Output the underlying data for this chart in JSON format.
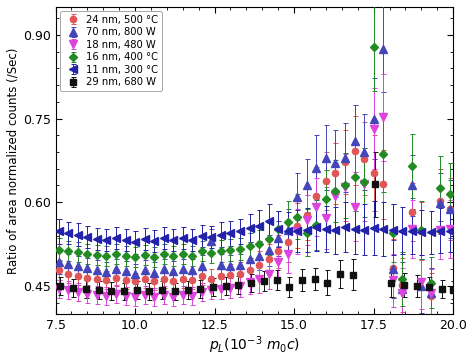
{
  "title": "",
  "xlabel": "$p_{L}(10^{-3}\\ m_0c)$",
  "ylabel": "Ratio of area normalized counts (/Sec)",
  "xlim": [
    7.5,
    20.0
  ],
  "ylim": [
    0.4,
    0.95
  ],
  "yticks": [
    0.45,
    0.6,
    0.75,
    0.9
  ],
  "xticks": [
    7.5,
    10.0,
    12.5,
    15.0,
    17.5,
    20.0
  ],
  "series": [
    {
      "label": "24 nm, 500 °C",
      "color": "#E05555",
      "marker": "o",
      "markersize": 4.5,
      "x": [
        7.6,
        7.9,
        8.2,
        8.5,
        8.8,
        9.1,
        9.4,
        9.7,
        10.0,
        10.3,
        10.6,
        10.9,
        11.2,
        11.5,
        11.8,
        12.1,
        12.4,
        12.7,
        13.0,
        13.3,
        13.6,
        13.9,
        14.2,
        14.5,
        14.8,
        15.1,
        15.4,
        15.7,
        16.0,
        16.3,
        16.6,
        16.9,
        17.2,
        17.5,
        17.8,
        18.1,
        18.4,
        18.7,
        19.0,
        19.3,
        19.6,
        19.9
      ],
      "y": [
        0.478,
        0.472,
        0.468,
        0.465,
        0.462,
        0.46,
        0.465,
        0.46,
        0.458,
        0.462,
        0.458,
        0.462,
        0.458,
        0.463,
        0.46,
        0.468,
        0.462,
        0.468,
        0.47,
        0.472,
        0.478,
        0.488,
        0.498,
        0.512,
        0.528,
        0.558,
        0.578,
        0.612,
        0.638,
        0.652,
        0.672,
        0.692,
        0.678,
        0.652,
        0.632,
        0.482,
        0.452,
        0.582,
        0.548,
        0.432,
        0.602,
        0.588
      ],
      "yerr": [
        0.018,
        0.016,
        0.016,
        0.016,
        0.016,
        0.016,
        0.016,
        0.016,
        0.016,
        0.016,
        0.016,
        0.016,
        0.016,
        0.016,
        0.016,
        0.016,
        0.018,
        0.018,
        0.02,
        0.02,
        0.022,
        0.025,
        0.028,
        0.03,
        0.035,
        0.04,
        0.045,
        0.052,
        0.052,
        0.055,
        0.058,
        0.062,
        0.065,
        0.068,
        0.062,
        0.052,
        0.048,
        0.052,
        0.052,
        0.042,
        0.058,
        0.055
      ]
    },
    {
      "label": "70 nm, 800 W",
      "color": "#4444BB",
      "marker": "^",
      "markersize": 5.5,
      "x": [
        7.6,
        7.9,
        8.2,
        8.5,
        8.8,
        9.1,
        9.4,
        9.7,
        10.0,
        10.3,
        10.6,
        10.9,
        11.2,
        11.5,
        11.8,
        12.1,
        12.4,
        12.7,
        13.0,
        13.3,
        13.6,
        13.9,
        14.2,
        14.5,
        14.8,
        15.1,
        15.4,
        15.7,
        16.0,
        16.3,
        16.6,
        16.9,
        17.2,
        17.5,
        17.8,
        18.1,
        18.4,
        18.7,
        19.0,
        19.3,
        19.6,
        19.9
      ],
      "y": [
        0.492,
        0.49,
        0.486,
        0.482,
        0.478,
        0.475,
        0.48,
        0.476,
        0.472,
        0.478,
        0.474,
        0.48,
        0.476,
        0.48,
        0.478,
        0.486,
        0.53,
        0.488,
        0.486,
        0.488,
        0.498,
        0.504,
        0.514,
        0.535,
        0.55,
        0.61,
        0.63,
        0.662,
        0.68,
        0.67,
        0.68,
        0.71,
        0.69,
        0.75,
        0.875,
        0.48,
        0.445,
        0.63,
        0.45,
        0.438,
        0.598,
        0.588
      ],
      "yerr": [
        0.02,
        0.018,
        0.018,
        0.018,
        0.018,
        0.018,
        0.018,
        0.018,
        0.018,
        0.018,
        0.018,
        0.018,
        0.018,
        0.018,
        0.02,
        0.02,
        0.022,
        0.02,
        0.02,
        0.02,
        0.022,
        0.025,
        0.028,
        0.032,
        0.038,
        0.042,
        0.048,
        0.058,
        0.058,
        0.06,
        0.062,
        0.065,
        0.068,
        0.072,
        0.078,
        0.052,
        0.048,
        0.055,
        0.048,
        0.045,
        0.055,
        0.052
      ]
    },
    {
      "label": "18 nm, 480 W",
      "color": "#DD44DD",
      "marker": "v",
      "markersize": 5.5,
      "x": [
        7.6,
        7.9,
        8.2,
        8.5,
        8.8,
        9.1,
        9.4,
        9.7,
        10.0,
        10.3,
        10.6,
        10.9,
        11.2,
        11.5,
        11.8,
        12.1,
        12.4,
        12.7,
        13.0,
        13.3,
        13.6,
        13.9,
        14.2,
        14.5,
        14.8,
        15.1,
        15.4,
        15.7,
        16.0,
        16.3,
        16.6,
        16.9,
        17.2,
        17.5,
        17.8,
        18.1,
        18.4,
        18.7,
        19.0,
        19.3,
        19.6,
        19.9
      ],
      "y": [
        0.445,
        0.442,
        0.439,
        0.436,
        0.433,
        0.432,
        0.435,
        0.432,
        0.43,
        0.434,
        0.43,
        0.434,
        0.43,
        0.434,
        0.432,
        0.439,
        0.442,
        0.445,
        0.447,
        0.45,
        0.457,
        0.462,
        0.472,
        0.492,
        0.508,
        0.548,
        0.568,
        0.592,
        0.572,
        0.612,
        0.627,
        0.592,
        0.632,
        0.732,
        0.752,
        0.46,
        0.438,
        0.552,
        0.457,
        0.438,
        0.55,
        0.552
      ],
      "yerr": [
        0.016,
        0.016,
        0.016,
        0.016,
        0.016,
        0.016,
        0.016,
        0.016,
        0.016,
        0.016,
        0.016,
        0.016,
        0.016,
        0.016,
        0.016,
        0.016,
        0.016,
        0.018,
        0.018,
        0.02,
        0.022,
        0.025,
        0.028,
        0.03,
        0.035,
        0.04,
        0.045,
        0.052,
        0.055,
        0.058,
        0.06,
        0.062,
        0.065,
        0.072,
        0.078,
        0.048,
        0.045,
        0.052,
        0.048,
        0.042,
        0.052,
        0.052
      ]
    },
    {
      "label": "16 nm, 400 °C",
      "color": "#228B22",
      "marker": "D",
      "markersize": 4.5,
      "x": [
        7.6,
        7.9,
        8.2,
        8.5,
        8.8,
        9.1,
        9.4,
        9.7,
        10.0,
        10.3,
        10.6,
        10.9,
        11.2,
        11.5,
        11.8,
        12.1,
        12.4,
        12.7,
        13.0,
        13.3,
        13.6,
        13.9,
        14.2,
        14.5,
        14.8,
        15.1,
        15.4,
        15.7,
        16.0,
        16.3,
        16.6,
        16.9,
        17.2,
        17.5,
        17.8,
        18.1,
        18.4,
        18.7,
        19.0,
        19.3,
        19.6,
        19.9
      ],
      "y": [
        0.515,
        0.512,
        0.51,
        0.508,
        0.506,
        0.504,
        0.507,
        0.504,
        0.502,
        0.506,
        0.502,
        0.507,
        0.504,
        0.507,
        0.504,
        0.512,
        0.509,
        0.512,
        0.514,
        0.516,
        0.522,
        0.526,
        0.534,
        0.552,
        0.564,
        0.574,
        0.545,
        0.56,
        0.605,
        0.62,
        0.63,
        0.645,
        0.636,
        0.878,
        0.686,
        0.545,
        0.462,
        0.665,
        0.55,
        0.456,
        0.625,
        0.615
      ],
      "yerr": [
        0.02,
        0.018,
        0.018,
        0.018,
        0.018,
        0.018,
        0.018,
        0.018,
        0.018,
        0.018,
        0.018,
        0.018,
        0.018,
        0.018,
        0.018,
        0.018,
        0.018,
        0.02,
        0.02,
        0.02,
        0.022,
        0.025,
        0.028,
        0.032,
        0.038,
        0.04,
        0.042,
        0.045,
        0.052,
        0.055,
        0.058,
        0.06,
        0.062,
        0.078,
        0.068,
        0.052,
        0.048,
        0.058,
        0.052,
        0.045,
        0.058,
        0.055
      ]
    },
    {
      "label": "11 nm, 300 °C",
      "color": "#2222AA",
      "marker": "<",
      "markersize": 5.5,
      "x": [
        7.6,
        7.9,
        8.2,
        8.5,
        8.8,
        9.1,
        9.4,
        9.7,
        10.0,
        10.3,
        10.6,
        10.9,
        11.2,
        11.5,
        11.8,
        12.1,
        12.4,
        12.7,
        13.0,
        13.3,
        13.6,
        13.9,
        14.2,
        14.5,
        14.8,
        15.1,
        15.4,
        15.7,
        16.0,
        16.3,
        16.6,
        16.9,
        17.2,
        17.5,
        17.8,
        18.1,
        18.4,
        18.7,
        19.0,
        19.3,
        19.6,
        19.9
      ],
      "y": [
        0.548,
        0.545,
        0.542,
        0.538,
        0.534,
        0.532,
        0.536,
        0.532,
        0.528,
        0.534,
        0.53,
        0.536,
        0.532,
        0.536,
        0.532,
        0.54,
        0.538,
        0.542,
        0.544,
        0.548,
        0.554,
        0.558,
        0.566,
        0.552,
        0.548,
        0.548,
        0.55,
        0.555,
        0.552,
        0.55,
        0.555,
        0.552,
        0.551,
        0.554,
        0.552,
        0.551,
        0.549,
        0.548,
        0.546,
        0.546,
        0.549,
        0.548
      ],
      "yerr": [
        0.022,
        0.02,
        0.02,
        0.02,
        0.02,
        0.02,
        0.02,
        0.02,
        0.02,
        0.02,
        0.02,
        0.02,
        0.02,
        0.02,
        0.02,
        0.02,
        0.02,
        0.022,
        0.022,
        0.022,
        0.025,
        0.028,
        0.03,
        0.032,
        0.035,
        0.038,
        0.04,
        0.042,
        0.042,
        0.042,
        0.045,
        0.045,
        0.045,
        0.048,
        0.048,
        0.045,
        0.042,
        0.04,
        0.04,
        0.038,
        0.04,
        0.038
      ]
    },
    {
      "label": "29 nm, 680 W",
      "color": "#111111",
      "marker": "s",
      "markersize": 4.5,
      "x": [
        7.65,
        8.05,
        8.45,
        8.85,
        9.25,
        9.65,
        10.05,
        10.45,
        10.85,
        11.25,
        11.65,
        12.05,
        12.45,
        12.85,
        13.25,
        13.65,
        14.05,
        14.45,
        14.85,
        15.25,
        15.65,
        16.05,
        16.45,
        16.85,
        17.55,
        18.05,
        18.45,
        18.85,
        19.25,
        19.65,
        20.0
      ],
      "y": [
        0.45,
        0.447,
        0.444,
        0.442,
        0.441,
        0.44,
        0.443,
        0.44,
        0.442,
        0.44,
        0.443,
        0.445,
        0.448,
        0.45,
        0.452,
        0.455,
        0.458,
        0.46,
        0.448,
        0.46,
        0.462,
        0.456,
        0.472,
        0.47,
        0.632,
        0.455,
        0.452,
        0.45,
        0.448,
        0.445,
        0.443
      ],
      "yerr": [
        0.016,
        0.016,
        0.016,
        0.016,
        0.016,
        0.016,
        0.016,
        0.016,
        0.016,
        0.016,
        0.016,
        0.016,
        0.016,
        0.016,
        0.016,
        0.016,
        0.018,
        0.018,
        0.018,
        0.02,
        0.02,
        0.022,
        0.025,
        0.028,
        0.058,
        0.025,
        0.022,
        0.02,
        0.018,
        0.016,
        0.016
      ]
    }
  ]
}
